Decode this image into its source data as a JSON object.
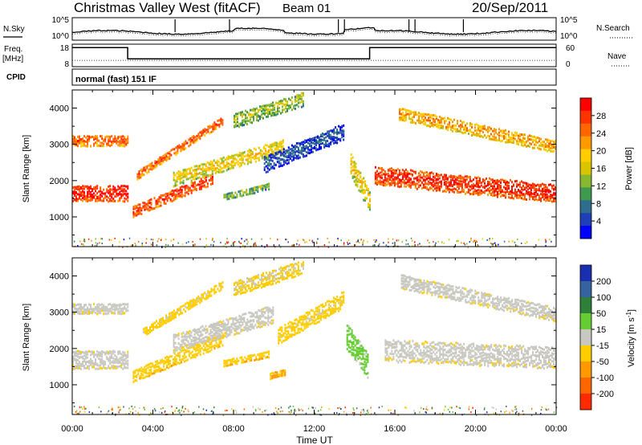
{
  "header": {
    "station": "Christmas Valley West (fitACF)",
    "beam": "Beam 01",
    "date": "20/Sep/2011"
  },
  "noise_panel": {
    "left_label": "N.Sky",
    "right_label": "N.Search",
    "left_ticks": [
      "10^5",
      "10^0"
    ],
    "right_ticks": [
      "10^5",
      "10^0"
    ]
  },
  "freq_panel": {
    "left_label_1": "Freq.",
    "left_label_2": "[MHz]",
    "right_label": "Nave",
    "left_ticks": [
      "18",
      "8"
    ],
    "right_ticks": [
      "60",
      "0"
    ]
  },
  "cpid": {
    "label": "CPID",
    "mode": "normal (fast) 151 IF"
  },
  "colorbars": {
    "power": {
      "label": "Power [dB]",
      "ticks": [
        "28",
        "24",
        "20",
        "16",
        "12",
        "8",
        "4"
      ],
      "colors": [
        "#ff0000",
        "#ff3300",
        "#ff6600",
        "#ff9900",
        "#ffcc00",
        "#d9c400",
        "#88b830",
        "#3f9a4f",
        "#2e6d8c",
        "#1e3fb5",
        "#0000ff"
      ]
    },
    "velocity": {
      "label_main": "Velocity [m s",
      "label_sup": "-1",
      "label_end": "]",
      "ticks": [
        "200",
        "100",
        "50",
        "15",
        "-15",
        "-50",
        "-100",
        "-200"
      ],
      "colors": [
        "#1a2fb0",
        "#3563a0",
        "#2e7f3a",
        "#66cc33",
        "#c8c8c0",
        "#ffcc00",
        "#ff9900",
        "#ff6600",
        "#ff2a00"
      ]
    }
  },
  "axes": {
    "y_label": "Slant Range [km]",
    "x_label": "Time UT",
    "y_ticks": [
      "1000",
      "2000",
      "3000",
      "4000"
    ],
    "x_ticks": [
      "00:00",
      "04:00",
      "08:00",
      "12:00",
      "16:00",
      "20:00",
      "00:00"
    ]
  },
  "chart_data": [
    {
      "type": "heatmap",
      "title": "Power [dB]",
      "xlabel": "Time UT",
      "ylabel": "Slant Range [km]",
      "xlim": [
        0,
        24
      ],
      "ylim": [
        180,
        4500
      ],
      "zlim": [
        0,
        30
      ],
      "bands": [
        {
          "x": [
            0.0,
            2.8
          ],
          "y_center": [
            1700,
            1700
          ],
          "y_halfwidth": 220,
          "value": 30
        },
        {
          "x": [
            0.0,
            2.8
          ],
          "y_center": [
            3150,
            3150
          ],
          "y_halfwidth": 150,
          "value": 26
        },
        {
          "x": [
            3.0,
            7.0
          ],
          "y_center": [
            1200,
            2100
          ],
          "y_halfwidth": 160,
          "value": 28
        },
        {
          "x": [
            3.2,
            7.5
          ],
          "y_center": [
            2200,
            3700
          ],
          "y_halfwidth": 120,
          "value": 26
        },
        {
          "x": [
            5.0,
            10.5
          ],
          "y_center": [
            2100,
            3000
          ],
          "y_halfwidth": 200,
          "value": 18
        },
        {
          "x": [
            8.0,
            11.5
          ],
          "y_center": [
            3700,
            4300
          ],
          "y_halfwidth": 200,
          "value": 14
        },
        {
          "x": [
            7.5,
            9.8
          ],
          "y_center": [
            1600,
            1900
          ],
          "y_halfwidth": 100,
          "value": 12
        },
        {
          "x": [
            9.5,
            13.5
          ],
          "y_center": [
            2500,
            3400
          ],
          "y_halfwidth": 230,
          "value": 6
        },
        {
          "x": [
            13.8,
            14.8
          ],
          "y_center": [
            2500,
            1500
          ],
          "y_halfwidth": 300,
          "value": 18
        },
        {
          "x": [
            15.0,
            24.0
          ],
          "y_center": [
            2200,
            1700
          ],
          "y_halfwidth": 250,
          "value": 29
        },
        {
          "x": [
            16.2,
            24.0
          ],
          "y_center": [
            3900,
            3000
          ],
          "y_halfwidth": 180,
          "value": 22
        }
      ]
    },
    {
      "type": "heatmap",
      "title": "Velocity [m s-1]",
      "xlabel": "Time UT",
      "ylabel": "Slant Range [km]",
      "xlim": [
        0,
        24
      ],
      "ylim": [
        180,
        4500
      ],
      "zlim": [
        -250,
        250
      ],
      "bands": [
        {
          "x": [
            0.0,
            2.8
          ],
          "y_center": [
            1750,
            1750
          ],
          "y_halfwidth": 250,
          "value": 0
        },
        {
          "x": [
            0.0,
            2.8
          ],
          "y_center": [
            3150,
            3150
          ],
          "y_halfwidth": 150,
          "value": 0
        },
        {
          "x": [
            3.0,
            7.5
          ],
          "y_center": [
            1300,
            2300
          ],
          "y_halfwidth": 180,
          "value": -60
        },
        {
          "x": [
            3.5,
            7.5
          ],
          "y_center": [
            2500,
            3800
          ],
          "y_halfwidth": 120,
          "value": -40
        },
        {
          "x": [
            5.0,
            10.0
          ],
          "y_center": [
            2200,
            3000
          ],
          "y_halfwidth": 250,
          "value": 0
        },
        {
          "x": [
            8.0,
            11.5
          ],
          "y_center": [
            3700,
            4300
          ],
          "y_halfwidth": 200,
          "value": -30
        },
        {
          "x": [
            7.5,
            9.8
          ],
          "y_center": [
            1650,
            1900
          ],
          "y_halfwidth": 100,
          "value": -60
        },
        {
          "x": [
            9.8,
            10.6
          ],
          "y_center": [
            1300,
            1400
          ],
          "y_halfwidth": 100,
          "value": -80
        },
        {
          "x": [
            10.2,
            13.5
          ],
          "y_center": [
            2400,
            3400
          ],
          "y_halfwidth": 230,
          "value": -40
        },
        {
          "x": [
            13.6,
            14.7
          ],
          "y_center": [
            2400,
            1600
          ],
          "y_halfwidth": 350,
          "value": 60
        },
        {
          "x": [
            15.5,
            24.0
          ],
          "y_center": [
            2000,
            1800
          ],
          "y_halfwidth": 300,
          "value": 0
        },
        {
          "x": [
            16.3,
            24.0
          ],
          "y_center": [
            3900,
            3000
          ],
          "y_halfwidth": 200,
          "value": 0
        }
      ]
    },
    {
      "type": "line",
      "title": "Freq. [MHz]",
      "xlim": [
        0,
        24
      ],
      "ylim": [
        8,
        18
      ],
      "x": [
        0.0,
        2.75,
        2.75,
        14.75,
        14.75,
        24.0
      ],
      "y": [
        16.5,
        16.5,
        11.5,
        11.5,
        16.5,
        16.5
      ]
    },
    {
      "type": "line",
      "title": "Nave",
      "xlim": [
        0,
        24
      ],
      "ylim": [
        0,
        60
      ],
      "x": [
        0.0,
        24.0
      ],
      "y": [
        17,
        17
      ]
    }
  ]
}
